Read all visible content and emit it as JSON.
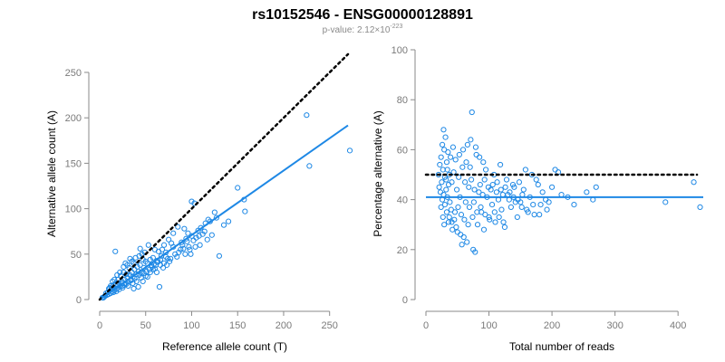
{
  "title": "rs10152546 - ENSG00000128891",
  "subtitle": {
    "prefix": "p-value: 2.12×10",
    "exponent": "-223"
  },
  "colors": {
    "points": "#1e88e5",
    "fit_line": "#1e88e5",
    "reference_line": "#000000"
  },
  "chart_data": [
    {
      "type": "scatter",
      "xlabel": "Reference allele count (T)",
      "ylabel": "Alternative allele count (A)",
      "xlim": [
        0,
        270
      ],
      "ylim": [
        0,
        250
      ],
      "xticks": [
        0,
        50,
        100,
        150,
        200,
        250
      ],
      "yticks": [
        0,
        50,
        100,
        150,
        200,
        250
      ],
      "grid": false,
      "reference_line": {
        "style": "dotted",
        "slope": 1,
        "intercept": 0,
        "x_range": [
          0,
          270
        ]
      },
      "fit_line": {
        "style": "solid",
        "slope": 0.71,
        "intercept": 0,
        "x_range": [
          2,
          270
        ]
      },
      "points": [
        [
          225,
          203
        ],
        [
          228,
          147
        ],
        [
          272,
          164
        ],
        [
          158,
          97
        ],
        [
          150,
          123
        ],
        [
          157,
          110
        ],
        [
          100,
          108
        ],
        [
          103,
          106
        ],
        [
          120,
          86
        ],
        [
          127,
          90
        ],
        [
          125,
          96
        ],
        [
          107,
          76
        ],
        [
          110,
          79
        ],
        [
          115,
          84
        ],
        [
          118,
          88
        ],
        [
          100,
          70
        ],
        [
          96,
          73
        ],
        [
          94,
          67
        ],
        [
          89,
          63
        ],
        [
          92,
          78
        ],
        [
          85,
          80
        ],
        [
          130,
          48
        ],
        [
          98,
          55
        ],
        [
          80,
          73
        ],
        [
          78,
          62
        ],
        [
          75,
          66
        ],
        [
          72,
          52
        ],
        [
          70,
          60
        ],
        [
          68,
          55
        ],
        [
          63,
          43
        ],
        [
          67,
          48
        ],
        [
          64,
          53
        ],
        [
          60,
          55
        ],
        [
          58,
          46
        ],
        [
          56,
          38
        ],
        [
          55,
          44
        ],
        [
          52,
          40
        ],
        [
          50,
          42
        ],
        [
          48,
          35
        ],
        [
          47,
          44
        ],
        [
          45,
          30
        ],
        [
          44,
          38
        ],
        [
          42,
          31
        ],
        [
          41,
          36
        ],
        [
          40,
          28
        ],
        [
          38,
          33
        ],
        [
          37,
          40
        ],
        [
          36,
          25
        ],
        [
          35,
          30
        ],
        [
          34,
          22
        ],
        [
          33,
          27
        ],
        [
          32,
          35
        ],
        [
          31,
          20
        ],
        [
          30,
          24
        ],
        [
          29,
          28
        ],
        [
          28,
          18
        ],
        [
          27,
          22
        ],
        [
          26,
          30
        ],
        [
          25,
          15
        ],
        [
          24,
          20
        ],
        [
          23,
          26
        ],
        [
          22,
          14
        ],
        [
          21,
          18
        ],
        [
          20,
          22
        ],
        [
          19,
          12
        ],
        [
          18,
          17
        ],
        [
          17,
          53
        ],
        [
          16,
          10
        ],
        [
          15,
          16
        ],
        [
          14,
          9
        ],
        [
          13,
          12
        ],
        [
          12,
          7
        ],
        [
          11,
          13
        ],
        [
          10,
          6
        ],
        [
          9,
          8
        ],
        [
          8,
          5
        ],
        [
          7,
          7
        ],
        [
          6,
          4
        ],
        [
          5,
          3
        ],
        [
          4,
          2
        ],
        [
          3,
          2
        ],
        [
          62,
          30
        ],
        [
          66,
          38
        ],
        [
          74,
          45
        ],
        [
          82,
          50
        ],
        [
          88,
          55
        ],
        [
          90,
          60
        ],
        [
          93,
          50
        ],
        [
          105,
          68
        ],
        [
          112,
          72
        ],
        [
          52,
          25
        ],
        [
          55,
          30
        ],
        [
          58,
          33
        ],
        [
          46,
          50
        ],
        [
          49,
          52
        ],
        [
          44,
          56
        ],
        [
          53,
          60
        ],
        [
          39,
          46
        ],
        [
          43,
          48
        ],
        [
          35,
          42
        ],
        [
          30,
          38
        ],
        [
          26,
          36
        ],
        [
          22,
          30
        ],
        [
          19,
          27
        ],
        [
          28,
          40
        ],
        [
          33,
          45
        ],
        [
          36,
          18
        ],
        [
          40,
          20
        ],
        [
          45,
          24
        ],
        [
          50,
          26
        ],
        [
          60,
          34
        ],
        [
          65,
          14
        ],
        [
          70,
          40
        ],
        [
          76,
          42
        ],
        [
          84,
          47
        ],
        [
          95,
          64
        ],
        [
          80,
          58
        ],
        [
          72,
          47
        ],
        [
          66,
          44
        ],
        [
          61,
          38
        ],
        [
          57,
          36
        ],
        [
          54,
          33
        ],
        [
          48,
          29
        ],
        [
          43,
          27
        ],
        [
          38,
          23
        ],
        [
          34,
          21
        ],
        [
          29,
          17
        ],
        [
          25,
          13
        ],
        [
          21,
          11
        ],
        [
          18,
          9
        ],
        [
          15,
          8
        ],
        [
          12,
          15
        ],
        [
          10,
          12
        ],
        [
          14,
          20
        ],
        [
          16,
          22
        ],
        [
          20,
          16
        ],
        [
          24,
          18
        ],
        [
          27,
          16
        ],
        [
          31,
          15
        ],
        [
          37,
          12
        ],
        [
          42,
          14
        ],
        [
          47,
          20
        ],
        [
          51,
          31
        ],
        [
          59,
          39
        ],
        [
          63,
          41
        ],
        [
          69,
          35
        ],
        [
          73,
          38
        ],
        [
          77,
          45
        ],
        [
          86,
          52
        ],
        [
          91,
          56
        ],
        [
          97,
          58
        ],
        [
          102,
          65
        ],
        [
          108,
          70
        ],
        [
          114,
          75
        ],
        [
          135,
          82
        ],
        [
          140,
          86
        ],
        [
          122,
          71
        ],
        [
          117,
          66
        ],
        [
          109,
          60
        ],
        [
          104,
          58
        ],
        [
          99,
          50
        ]
      ]
    },
    {
      "type": "scatter",
      "xlabel": "Total number of reads",
      "ylabel": "Percentage alternative (A)",
      "xlim": [
        0,
        440
      ],
      "ylim": [
        0,
        100
      ],
      "xticks": [
        0,
        100,
        200,
        300,
        400
      ],
      "yticks": [
        0,
        20,
        40,
        60,
        80,
        100
      ],
      "grid": false,
      "reference_line": {
        "style": "dotted",
        "y": 50,
        "x_range": [
          0,
          430
        ]
      },
      "fit_line": {
        "style": "solid",
        "y": 41,
        "x_range": [
          0,
          440
        ]
      },
      "points": [
        [
          73,
          75
        ],
        [
          28,
          68
        ],
        [
          31,
          65
        ],
        [
          26,
          62
        ],
        [
          29,
          60
        ],
        [
          35,
          59
        ],
        [
          24,
          57
        ],
        [
          33,
          55
        ],
        [
          22,
          54
        ],
        [
          27,
          52
        ],
        [
          20,
          50
        ],
        [
          30,
          49
        ],
        [
          25,
          47
        ],
        [
          36,
          46
        ],
        [
          21,
          45
        ],
        [
          32,
          44
        ],
        [
          23,
          43
        ],
        [
          28,
          42
        ],
        [
          34,
          41
        ],
        [
          26,
          40
        ],
        [
          38,
          39
        ],
        [
          30,
          38
        ],
        [
          24,
          37
        ],
        [
          40,
          36
        ],
        [
          33,
          35
        ],
        [
          27,
          33
        ],
        [
          45,
          32
        ],
        [
          36,
          31
        ],
        [
          29,
          30
        ],
        [
          48,
          29
        ],
        [
          42,
          28
        ],
        [
          50,
          27
        ],
        [
          55,
          26
        ],
        [
          60,
          25
        ],
        [
          65,
          23
        ],
        [
          57,
          22
        ],
        [
          75,
          20
        ],
        [
          78,
          19
        ],
        [
          82,
          30
        ],
        [
          88,
          35
        ],
        [
          92,
          28
        ],
        [
          100,
          33
        ],
        [
          105,
          38
        ],
        [
          110,
          31
        ],
        [
          115,
          40
        ],
        [
          120,
          36
        ],
        [
          125,
          29
        ],
        [
          130,
          42
        ],
        [
          135,
          37
        ],
        [
          140,
          45
        ],
        [
          145,
          33
        ],
        [
          150,
          39
        ],
        [
          155,
          44
        ],
        [
          160,
          36
        ],
        [
          165,
          41
        ],
        [
          170,
          38
        ],
        [
          175,
          48
        ],
        [
          180,
          34
        ],
        [
          185,
          43
        ],
        [
          190,
          40
        ],
        [
          195,
          39
        ],
        [
          200,
          45
        ],
        [
          205,
          52
        ],
        [
          210,
          51
        ],
        [
          215,
          42
        ],
        [
          225,
          41
        ],
        [
          235,
          38
        ],
        [
          255,
          43
        ],
        [
          265,
          40
        ],
        [
          270,
          45
        ],
        [
          380,
          39
        ],
        [
          425,
          47
        ],
        [
          435,
          37
        ],
        [
          64,
          55
        ],
        [
          70,
          53
        ],
        [
          80,
          58
        ],
        [
          95,
          52
        ],
        [
          108,
          50
        ],
        [
          118,
          54
        ],
        [
          128,
          48
        ],
        [
          138,
          46
        ],
        [
          148,
          47
        ],
        [
          158,
          52
        ],
        [
          168,
          50
        ],
        [
          178,
          46
        ],
        [
          44,
          51
        ],
        [
          52,
          49
        ],
        [
          58,
          53
        ],
        [
          62,
          47
        ],
        [
          68,
          45
        ],
        [
          72,
          48
        ],
        [
          77,
          44
        ],
        [
          84,
          43
        ],
        [
          90,
          42
        ],
        [
          97,
          41
        ],
        [
          103,
          44
        ],
        [
          112,
          43
        ],
        [
          122,
          42
        ],
        [
          132,
          40
        ],
        [
          142,
          39
        ],
        [
          152,
          37
        ],
        [
          162,
          35
        ],
        [
          172,
          34
        ],
        [
          182,
          38
        ],
        [
          192,
          36
        ],
        [
          86,
          46
        ],
        [
          93,
          48
        ],
        [
          99,
          45
        ],
        [
          106,
          46
        ],
        [
          113,
          47
        ],
        [
          119,
          44
        ],
        [
          126,
          45
        ],
        [
          133,
          43
        ],
        [
          139,
          41
        ],
        [
          146,
          40
        ],
        [
          153,
          42
        ],
        [
          39,
          57
        ],
        [
          43,
          61
        ],
        [
          47,
          56
        ],
        [
          53,
          58
        ],
        [
          59,
          60
        ],
        [
          66,
          62
        ],
        [
          71,
          64
        ],
        [
          79,
          61
        ],
        [
          85,
          57
        ],
        [
          91,
          55
        ],
        [
          37,
          33
        ],
        [
          41,
          31
        ],
        [
          46,
          35
        ],
        [
          51,
          37
        ],
        [
          56,
          34
        ],
        [
          61,
          32
        ],
        [
          67,
          30
        ],
        [
          74,
          33
        ],
        [
          81,
          35
        ],
        [
          87,
          37
        ],
        [
          94,
          34
        ],
        [
          101,
          32
        ],
        [
          109,
          35
        ],
        [
          116,
          33
        ],
        [
          123,
          31
        ],
        [
          32,
          48
        ],
        [
          34,
          52
        ],
        [
          37,
          50
        ],
        [
          41,
          47
        ],
        [
          49,
          44
        ],
        [
          54,
          41
        ],
        [
          63,
          39
        ],
        [
          69,
          37
        ],
        [
          76,
          39
        ]
      ]
    }
  ]
}
